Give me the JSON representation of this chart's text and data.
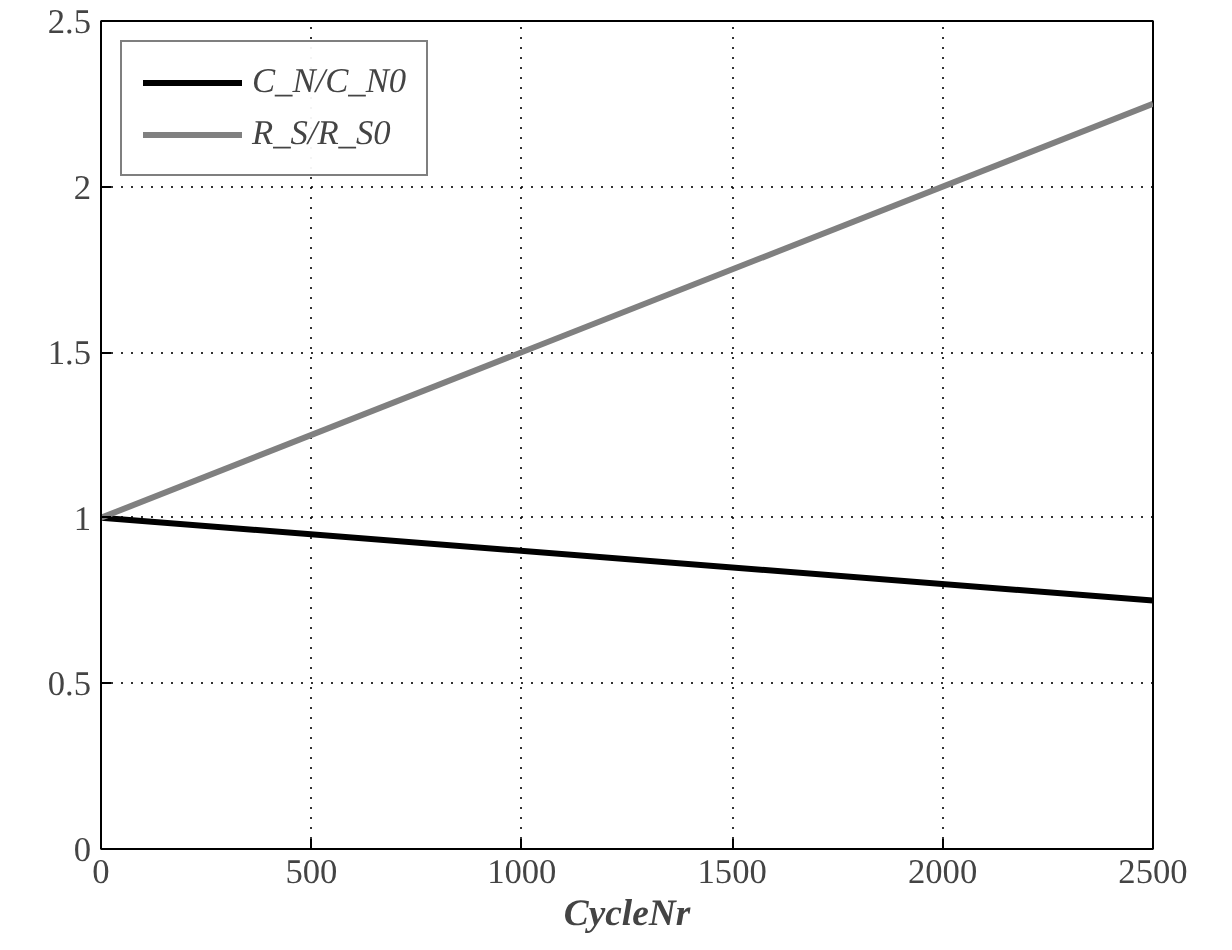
{
  "chart_data": {
    "type": "line",
    "xlabel": "CycleNr",
    "x": [
      0,
      2500
    ],
    "series": [
      {
        "name": "C_N/C_N0",
        "color": "#000000",
        "values": [
          1,
          0.75
        ]
      },
      {
        "name": "R_S/R_S0",
        "color": "#808080",
        "values": [
          1,
          2.25
        ]
      }
    ],
    "xlim": [
      0,
      2500
    ],
    "ylim": [
      0,
      2.5
    ],
    "xticks": [
      0,
      500,
      1000,
      1500,
      2000,
      2500
    ],
    "yticks": [
      0,
      0.5,
      1,
      1.5,
      2,
      2.5
    ],
    "grid": true,
    "legend": "top left",
    "line_style": "solid",
    "marker": "none"
  }
}
